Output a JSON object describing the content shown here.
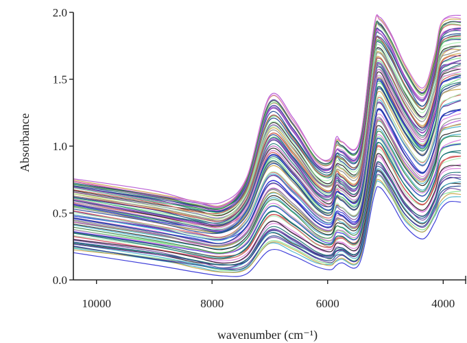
{
  "chart_data": {
    "type": "line",
    "title": "",
    "xlabel": "wavenumber (cm⁻¹)",
    "ylabel": "Absorbance",
    "xlim": [
      10400,
      3600
    ],
    "ylim": [
      0,
      2.0
    ],
    "x_reversed": true,
    "x_ticks": [
      10000,
      8000,
      6000,
      4000
    ],
    "x_tick_labels": [
      "10000",
      "8000",
      "6000",
      "4000"
    ],
    "y_ticks": [
      0.0,
      0.5,
      1.0,
      1.5,
      2.0
    ],
    "y_tick_labels": [
      "0.0",
      "0.5",
      "1.0",
      "1.5",
      "2.0"
    ],
    "grid": false,
    "legend": "none",
    "n_series": 90,
    "representative_spectra": {
      "description_of_envelope": "many overlapping NIR absorbance spectra",
      "x": [
        10400,
        9000,
        8300,
        7800,
        7400,
        7000,
        6600,
        6200,
        5950,
        5850,
        5750,
        5450,
        5200,
        5100,
        4900,
        4650,
        4350,
        4150,
        4050,
        3900,
        3700
      ],
      "lowest": [
        0.22,
        0.14,
        0.09,
        0.05,
        0.07,
        0.25,
        0.2,
        0.12,
        0.1,
        0.13,
        0.15,
        0.14,
        0.65,
        0.72,
        0.6,
        0.42,
        0.34,
        0.45,
        0.55,
        0.6,
        0.6
      ],
      "median": [
        0.55,
        0.44,
        0.38,
        0.36,
        0.5,
        0.88,
        0.75,
        0.55,
        0.5,
        0.62,
        0.6,
        0.58,
        1.3,
        1.45,
        1.3,
        1.1,
        0.95,
        1.15,
        1.4,
        1.45,
        1.48
      ],
      "highest": [
        0.75,
        0.66,
        0.6,
        0.58,
        0.78,
        1.38,
        1.22,
        0.95,
        0.92,
        1.07,
        1.05,
        1.05,
        1.9,
        1.97,
        1.85,
        1.62,
        1.45,
        1.7,
        1.92,
        1.98,
        1.98
      ]
    }
  },
  "colors": {
    "palette": [
      "#1a1a1a",
      "#2b2bd6",
      "#7ee08a",
      "#b34fd1",
      "#2a7d3a",
      "#6a3fa0",
      "#d24f4f",
      "#3fb0c9",
      "#c9a23f",
      "#8a8a8a",
      "#153b8c",
      "#a7f0b0",
      "#d97ad9",
      "#0f6f6f"
    ],
    "highest_curve": "#d97ad9"
  }
}
